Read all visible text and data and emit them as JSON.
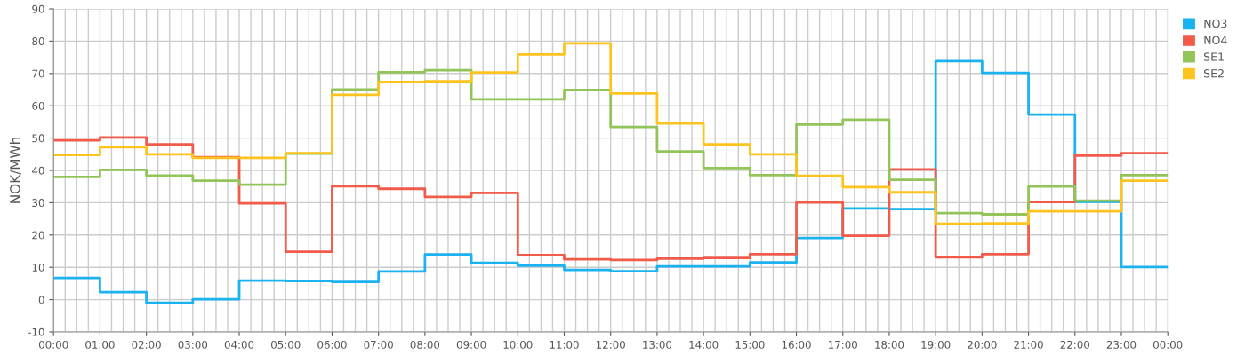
{
  "chart_data": {
    "type": "step",
    "ylabel": "NOK/MWh",
    "x": [
      0,
      1,
      2,
      3,
      4,
      5,
      6,
      7,
      8,
      9,
      10,
      11,
      12,
      13,
      14,
      15,
      16,
      17,
      18,
      19,
      20,
      21,
      22,
      23,
      24
    ],
    "series": [
      {
        "name": "NO3",
        "color": "#1ab2f0",
        "values": [
          6.7,
          2.3,
          -1.0,
          0.1,
          5.9,
          5.8,
          5.5,
          8.7,
          14.0,
          11.4,
          10.5,
          9.2,
          8.8,
          10.3,
          10.3,
          11.5,
          19.1,
          28.2,
          28.0,
          73.8,
          70.2,
          57.3,
          30.3,
          10.1,
          10.1
        ]
      },
      {
        "name": "NO4",
        "color": "#f25a4a",
        "values": [
          49.3,
          50.2,
          48.1,
          44.1,
          29.8,
          14.8,
          35.1,
          34.3,
          31.8,
          33.0,
          13.8,
          12.5,
          12.3,
          12.7,
          12.9,
          14.1,
          30.1,
          19.8,
          40.3,
          13.1,
          14.1,
          30.2,
          44.6,
          45.3,
          45.3
        ]
      },
      {
        "name": "SE1",
        "color": "#92c45a",
        "values": [
          38.0,
          40.2,
          38.4,
          36.8,
          35.6,
          45.2,
          65.0,
          70.4,
          71.0,
          62.0,
          62.0,
          64.9,
          53.4,
          45.9,
          40.7,
          38.5,
          54.2,
          55.7,
          37.1,
          26.8,
          26.4,
          35.0,
          30.6,
          38.5,
          38.5
        ]
      },
      {
        "name": "SE2",
        "color": "#fdc31f",
        "values": [
          44.8,
          47.2,
          45.0,
          43.9,
          43.9,
          45.3,
          63.4,
          67.4,
          67.6,
          70.3,
          75.9,
          79.3,
          63.8,
          54.5,
          48.1,
          45.0,
          38.3,
          34.8,
          33.2,
          23.5,
          23.6,
          27.3,
          27.3,
          36.8,
          36.8
        ]
      }
    ],
    "xlim": [
      0,
      24
    ],
    "xticks": [
      {
        "value": 0,
        "label": "00:00"
      },
      {
        "value": 1,
        "label": "01:00"
      },
      {
        "value": 2,
        "label": "02:00"
      },
      {
        "value": 3,
        "label": "03:00"
      },
      {
        "value": 4,
        "label": "04:00"
      },
      {
        "value": 5,
        "label": "05:00"
      },
      {
        "value": 6,
        "label": "06:00"
      },
      {
        "value": 7,
        "label": "07:00"
      },
      {
        "value": 8,
        "label": "08:00"
      },
      {
        "value": 9,
        "label": "09:00"
      },
      {
        "value": 10,
        "label": "10:00"
      },
      {
        "value": 11,
        "label": "11:00"
      },
      {
        "value": 12,
        "label": "12:00"
      },
      {
        "value": 13,
        "label": "13:00"
      },
      {
        "value": 14,
        "label": "14:00"
      },
      {
        "value": 15,
        "label": "15:00"
      },
      {
        "value": 16,
        "label": "16:00"
      },
      {
        "value": 17,
        "label": "17:00"
      },
      {
        "value": 18,
        "label": "18:00"
      },
      {
        "value": 19,
        "label": "19:00"
      },
      {
        "value": 20,
        "label": "20:00"
      },
      {
        "value": 21,
        "label": "21:00"
      },
      {
        "value": 22,
        "label": "22:00"
      },
      {
        "value": 23,
        "label": "23:00"
      },
      {
        "value": 24,
        "label": "00:00"
      }
    ],
    "ylim": [
      -10,
      90
    ],
    "yticks": [
      -10,
      0,
      10,
      20,
      30,
      40,
      50,
      60,
      70,
      80,
      90
    ],
    "grid": true,
    "legend": "top right",
    "line_style": "solid",
    "marker": "none"
  }
}
